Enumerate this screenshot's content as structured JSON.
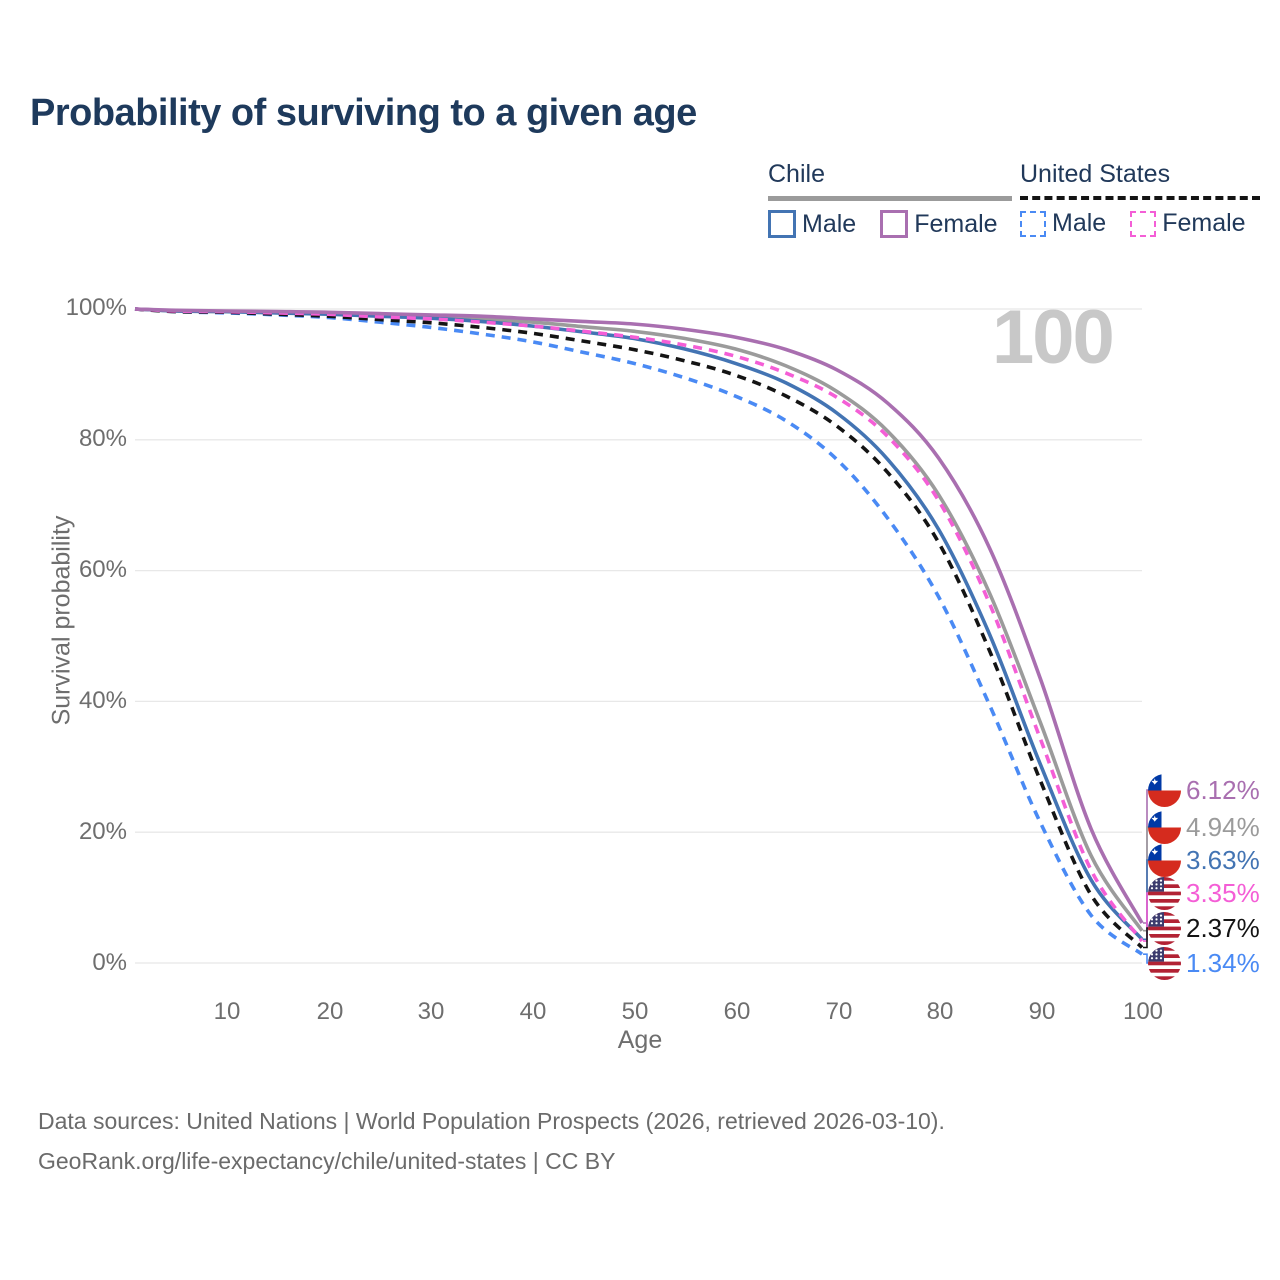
{
  "title": "Probability of surviving to a given age",
  "watermark_age": "100",
  "legend": {
    "chile": {
      "label": "Chile",
      "male": "Male",
      "female": "Female"
    },
    "united_states": {
      "label": "United States",
      "male": "Male",
      "female": "Female"
    }
  },
  "axes": {
    "y_title": "Survival probability",
    "x_title": "Age"
  },
  "chart_data": {
    "type": "line",
    "title": "Probability of surviving to a given age",
    "xlabel": "Age",
    "ylabel": "Survival probability",
    "xlim": [
      1,
      100
    ],
    "ylim": [
      0,
      100
    ],
    "grid": true,
    "legend_position": "top-right",
    "xticklabels": [
      "10",
      "20",
      "30",
      "40",
      "50",
      "60",
      "70",
      "80",
      "90",
      "100"
    ],
    "xtick_values": [
      10,
      20,
      30,
      40,
      50,
      60,
      70,
      80,
      90,
      100
    ],
    "yticklabels": [
      "0%",
      "20%",
      "40%",
      "60%",
      "80%",
      "100%"
    ],
    "ytick_values": [
      0,
      20,
      40,
      60,
      80,
      100
    ],
    "x": [
      1,
      5,
      10,
      15,
      20,
      25,
      30,
      35,
      40,
      45,
      50,
      55,
      60,
      65,
      70,
      75,
      80,
      85,
      90,
      95,
      100
    ],
    "series": [
      {
        "name": "Chile Female",
        "country": "Chile",
        "sex": "Female",
        "style": "solid",
        "color": "#a96fb0",
        "end_label": "6.12%",
        "flag": "chile",
        "values": [
          100,
          99.8,
          99.7,
          99.6,
          99.5,
          99.3,
          99.1,
          98.9,
          98.5,
          98.1,
          97.7,
          96.9,
          95.7,
          93.8,
          90.7,
          85.6,
          77.2,
          63.5,
          43.5,
          20.5,
          6.12
        ]
      },
      {
        "name": "Chile Both sexes",
        "country": "Chile",
        "sex": "Both",
        "style": "solid",
        "color": "#9b9b9b",
        "end_label": "4.94%",
        "flag": "chile",
        "values": [
          100,
          99.7,
          99.6,
          99.5,
          99.3,
          99.1,
          98.8,
          98.5,
          98.0,
          97.3,
          96.6,
          95.5,
          93.9,
          91.3,
          87.4,
          81.3,
          71.6,
          56.6,
          36.8,
          16.4,
          4.94
        ]
      },
      {
        "name": "Chile Male",
        "country": "Chile",
        "sex": "Male",
        "style": "solid",
        "color": "#4374b3",
        "end_label": "3.63%",
        "flag": "chile",
        "values": [
          100,
          99.7,
          99.6,
          99.4,
          99.2,
          98.9,
          98.6,
          98.1,
          97.4,
          96.5,
          95.5,
          93.9,
          91.7,
          88.7,
          84.1,
          77.0,
          66.3,
          50.3,
          30.4,
          12.7,
          3.63
        ]
      },
      {
        "name": "United States Female",
        "country": "United States",
        "sex": "Female",
        "style": "dashed",
        "color": "#f45ed6",
        "end_label": "3.35%",
        "flag": "us",
        "values": [
          100,
          99.7,
          99.6,
          99.4,
          99.2,
          98.8,
          98.5,
          98.0,
          97.4,
          96.6,
          95.7,
          94.5,
          92.8,
          90.2,
          86.5,
          80.5,
          70.7,
          55.0,
          34.3,
          14.2,
          3.35
        ]
      },
      {
        "name": "United States Both sexes",
        "country": "United States",
        "sex": "Both",
        "style": "dashed",
        "color": "#141414",
        "end_label": "2.37%",
        "flag": "us",
        "values": [
          100,
          99.6,
          99.5,
          99.2,
          98.9,
          98.4,
          97.9,
          97.2,
          96.3,
          95.1,
          93.8,
          92.1,
          89.9,
          86.7,
          82.1,
          75.0,
          64.3,
          47.8,
          27.9,
          10.4,
          2.37
        ]
      },
      {
        "name": "United States Male",
        "country": "United States",
        "sex": "Male",
        "style": "dashed",
        "color": "#4a8af4",
        "end_label": "1.34%",
        "flag": "us",
        "values": [
          100,
          99.6,
          99.4,
          99.1,
          98.7,
          98.0,
          97.2,
          96.2,
          95.0,
          93.4,
          91.7,
          89.5,
          86.7,
          82.9,
          77.0,
          68.0,
          56.0,
          39.5,
          21.5,
          7.3,
          1.34
        ]
      }
    ]
  },
  "footer": {
    "line1": "Data sources: United Nations | World Population Prospects (2026, retrieved 2026-03-10).",
    "line2": "GeoRank.org/life-expectancy/chile/united-states | CC BY"
  }
}
